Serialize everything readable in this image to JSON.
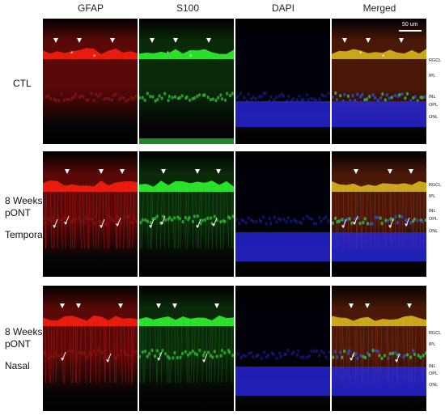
{
  "columns": [
    "GFAP",
    "S100",
    "DAPI",
    "Merged"
  ],
  "rows": [
    {
      "label_lines": [
        "CTL"
      ],
      "layer_labels": [
        "RGCL",
        "IPL",
        "INL",
        "OPL",
        "ONL"
      ]
    },
    {
      "label_lines": [
        "8 Weeks",
        "pONT",
        "",
        "Temporal"
      ],
      "layer_labels": [
        "RGCL",
        "IPL",
        "INL",
        "OPL",
        "ONL"
      ]
    },
    {
      "label_lines": [
        "8 Weeks",
        "pONT",
        "",
        "Nasal"
      ],
      "layer_labels": [
        "RGCL",
        "IPL",
        "INL",
        "OPL",
        "ONL"
      ]
    }
  ],
  "scalebar": {
    "label": "50 um"
  },
  "colors": {
    "gfap": "#e01010",
    "s100": "#20d020",
    "dapi": "#2020ff",
    "merged_tissue": "#c06020"
  }
}
